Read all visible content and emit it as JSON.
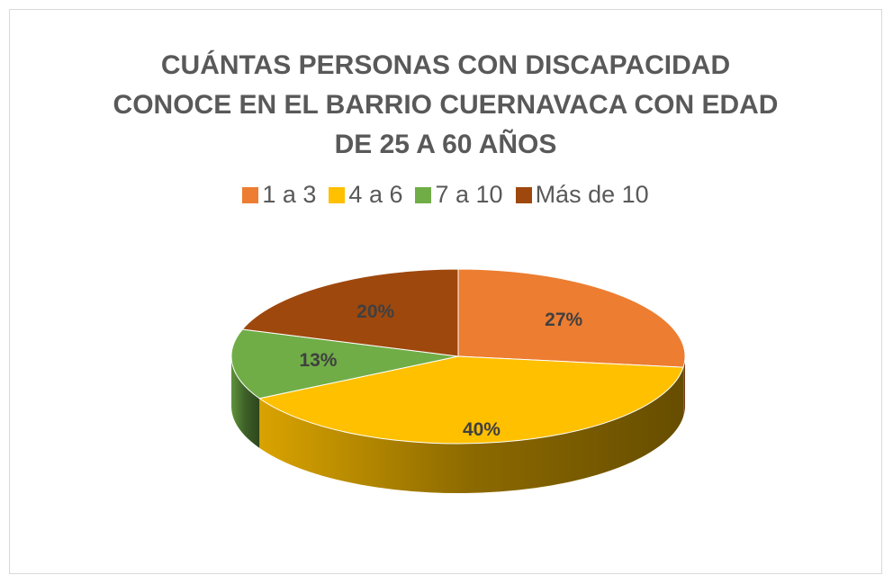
{
  "chart_data": {
    "type": "pie",
    "title": "CUÁNTAS PERSONAS CON DISCAPACIDAD CONOCE EN EL BARRIO CUERNAVACA CON EDAD DE 25 A 60 AÑOS",
    "categories": [
      "1 a 3",
      "4 a 6",
      "7 a 10",
      "Más de 10"
    ],
    "values": [
      27,
      40,
      13,
      20
    ],
    "value_labels": [
      "27%",
      "40%",
      "13%",
      "20%"
    ],
    "colors": [
      "#ED7D31",
      "#FFC000",
      "#70AD47",
      "#9E480E"
    ],
    "legend": "top"
  }
}
